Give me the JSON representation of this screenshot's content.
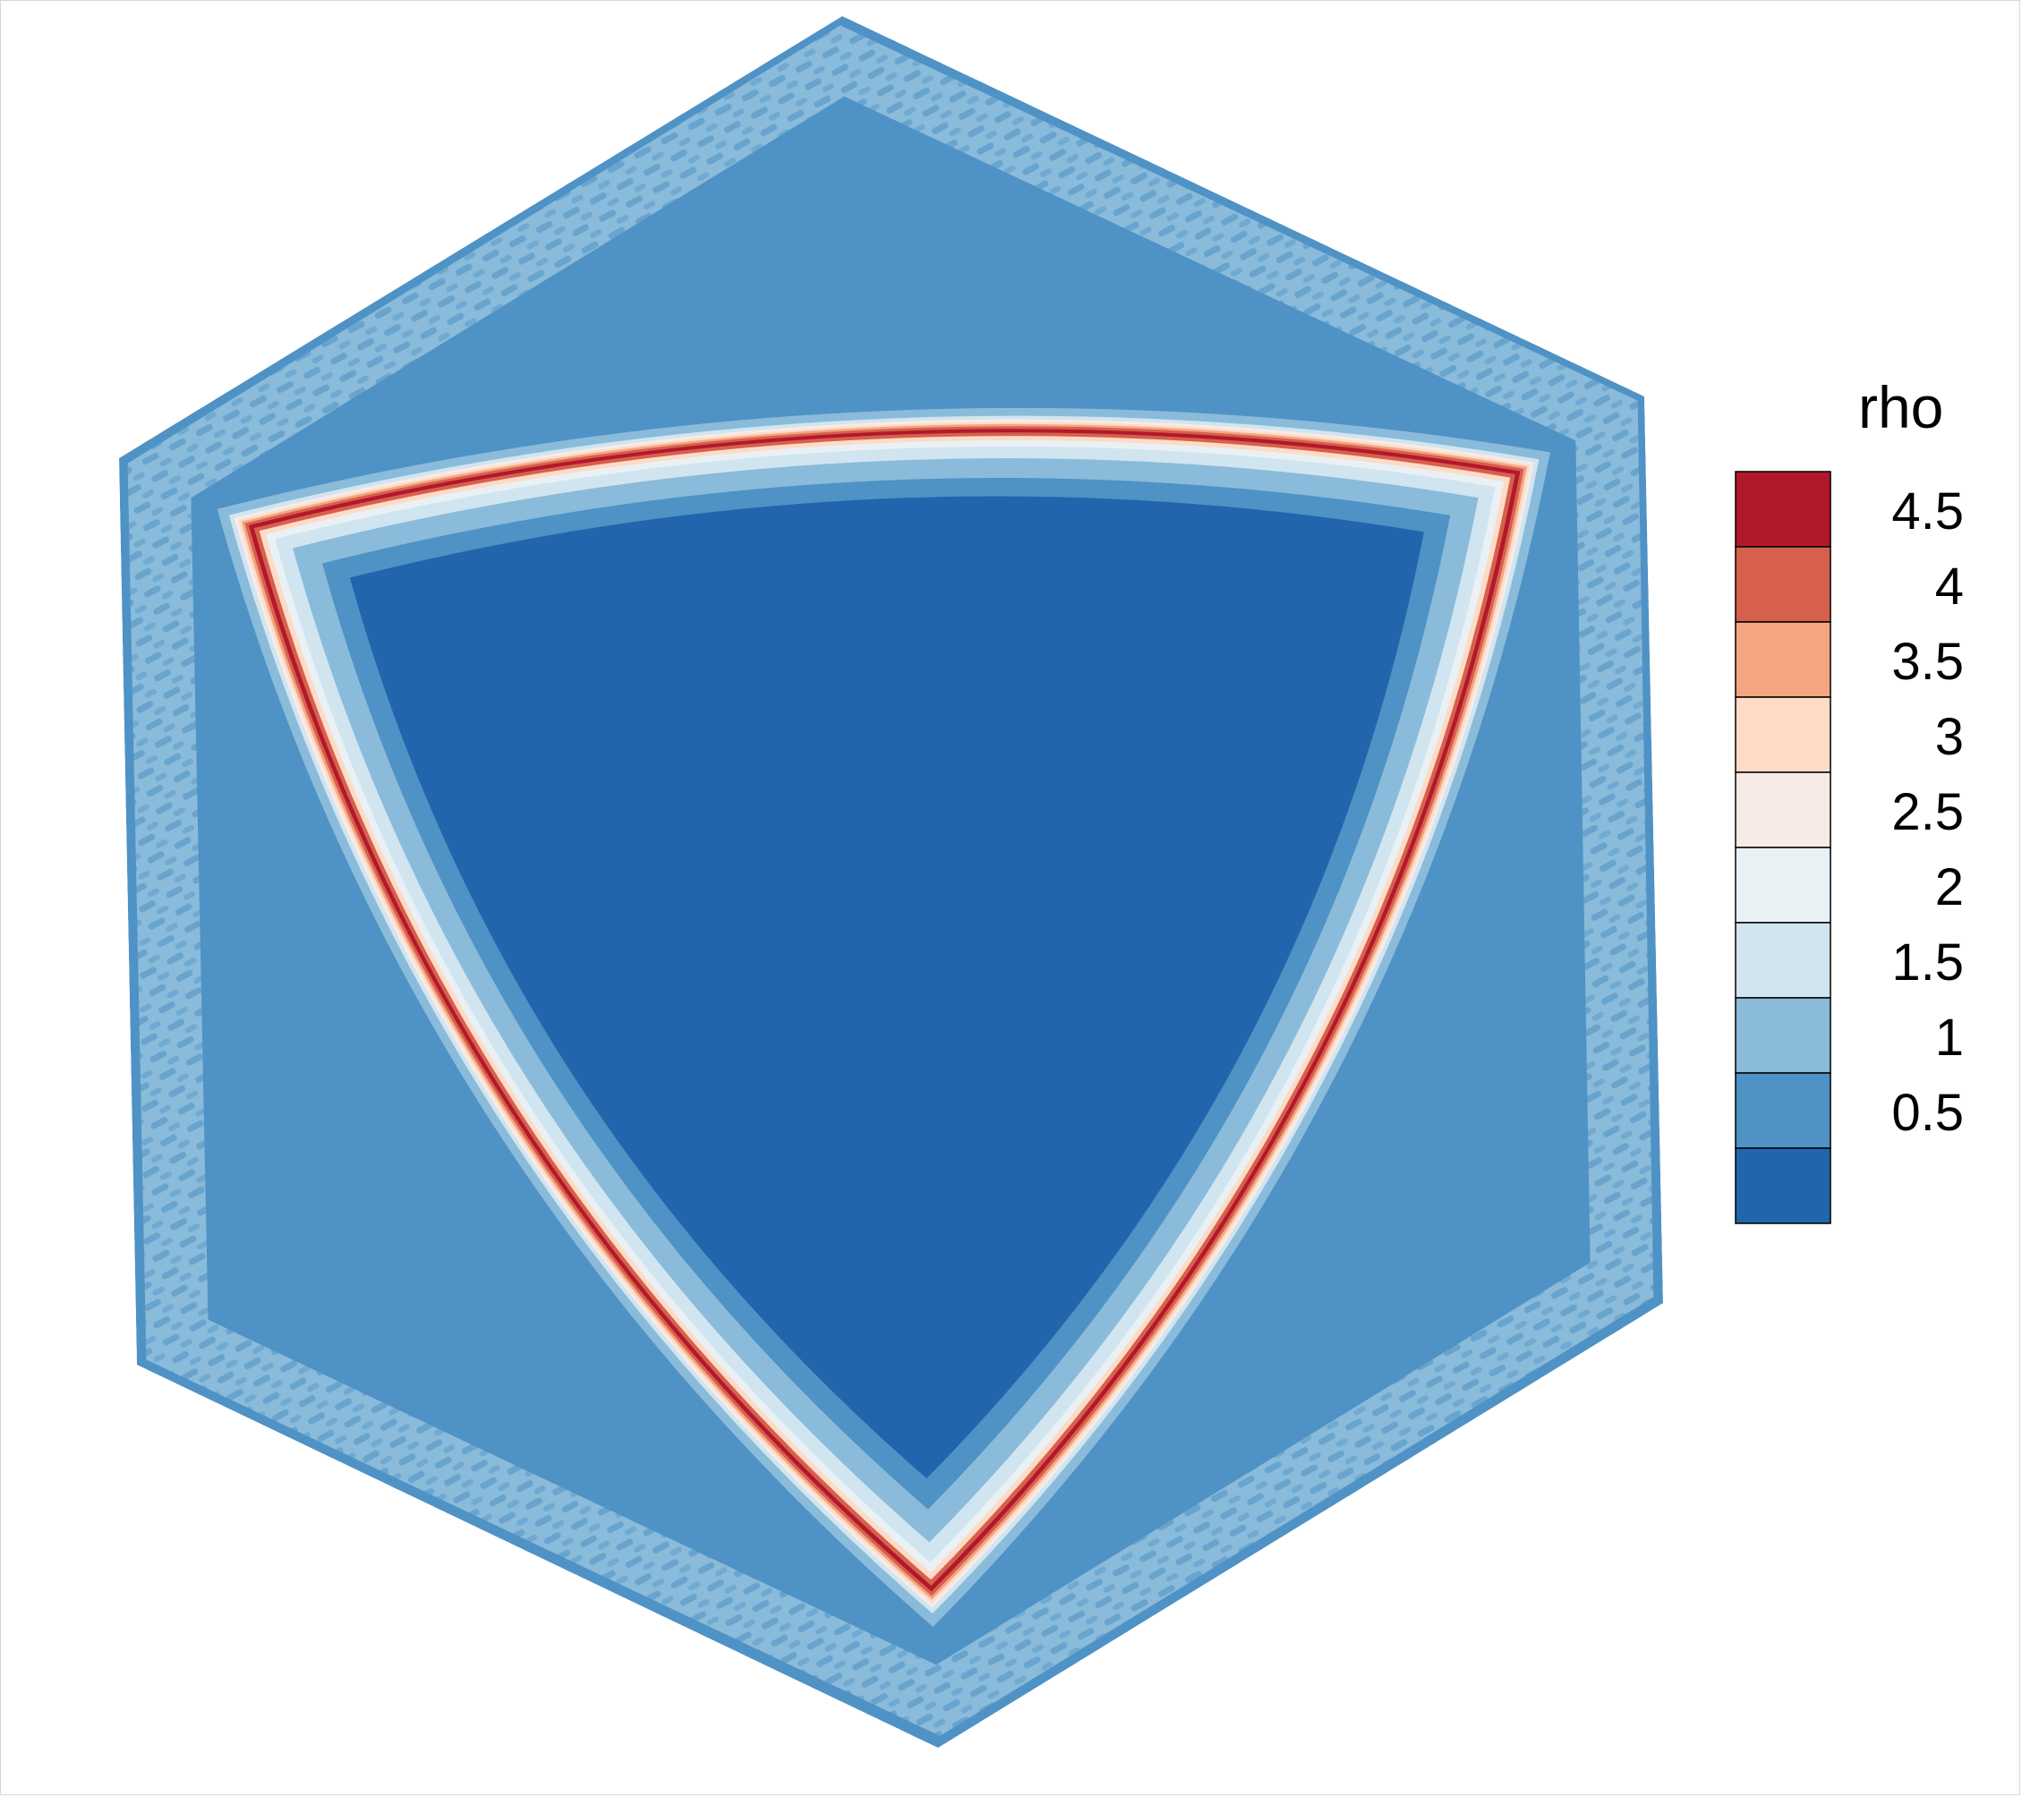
{
  "chart_data": {
    "type": "heatmap",
    "variable": "rho",
    "legend": {
      "title": "rho",
      "placement": "right",
      "levels": [
        0.5,
        1,
        1.5,
        2,
        2.5,
        3,
        3.5,
        4,
        4.5
      ],
      "tick_labels": [
        "0.5",
        "1",
        "1.5",
        "2",
        "2.5",
        "3",
        "3.5",
        "4",
        "4.5"
      ],
      "bands": [
        {
          "min": 0.0,
          "max": 0.5,
          "color": "#2166ac"
        },
        {
          "min": 0.5,
          "max": 1.0,
          "color": "#4f92c5"
        },
        {
          "min": 1.0,
          "max": 1.5,
          "color": "#8abbda"
        },
        {
          "min": 1.5,
          "max": 2.0,
          "color": "#d1e5f0"
        },
        {
          "min": 2.0,
          "max": 2.5,
          "color": "#eaf1f5"
        },
        {
          "min": 2.5,
          "max": 3.0,
          "color": "#f7ebe6"
        },
        {
          "min": 3.0,
          "max": 3.5,
          "color": "#fddbc7"
        },
        {
          "min": 3.5,
          "max": 4.0,
          "color": "#f4a582"
        },
        {
          "min": 4.0,
          "max": 4.5,
          "color": "#d6604d"
        },
        {
          "min": 4.5,
          "max": 5.0,
          "color": "#b2182b"
        }
      ]
    },
    "field_regions": [
      {
        "region": "outer-hexagon",
        "rho_band": [
          1.0,
          1.5
        ]
      },
      {
        "region": "hexagon-edge-bands",
        "rho_band": [
          0.5,
          1.0
        ]
      },
      {
        "region": "shock-front",
        "rho_band": [
          4.5,
          5.0
        ]
      },
      {
        "region": "inner-core",
        "rho_band": [
          0.0,
          0.5
        ]
      }
    ],
    "grid": false
  }
}
